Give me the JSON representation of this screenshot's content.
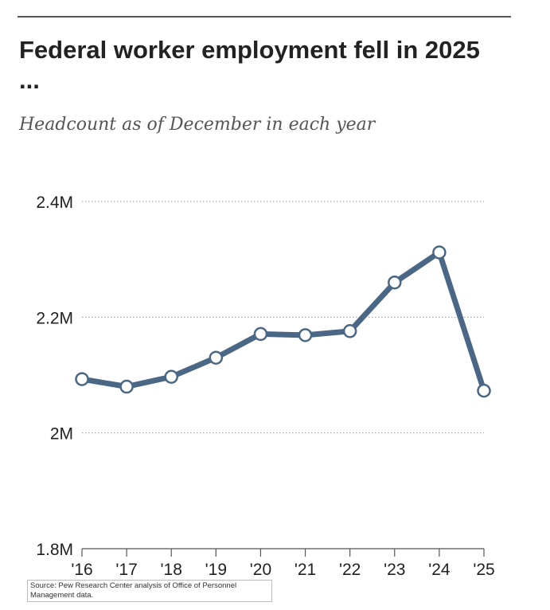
{
  "title": "Federal worker employment fell in 2025 ...",
  "subtitle": "Headcount as of December in each year",
  "source": "Source: Pew Research Center analysis of Office of Personnel Management data.",
  "colors": {
    "line": "#4a6785",
    "grid": "#999999",
    "text": "#222222",
    "axis": "#555555"
  },
  "chart_data": {
    "type": "line",
    "title": "Federal worker employment fell in 2025 ...",
    "subtitle": "Headcount as of December in each year",
    "xlabel": "",
    "ylabel": "",
    "categories": [
      "'16",
      "'17",
      "'18",
      "'19",
      "'20",
      "'21",
      "'22",
      "'23",
      "'24",
      "'25"
    ],
    "series": [
      {
        "name": "Headcount",
        "values": [
          2.093,
          2.08,
          2.097,
          2.13,
          2.171,
          2.169,
          2.176,
          2.26,
          2.312,
          2.073
        ]
      }
    ],
    "ylim": [
      1.8,
      2.4
    ],
    "yticks": [
      1.8,
      2.0,
      2.2,
      2.4
    ],
    "ytick_labels": [
      "1.8M",
      "2M",
      "2.2M",
      "2.4M"
    ],
    "grid": true
  }
}
